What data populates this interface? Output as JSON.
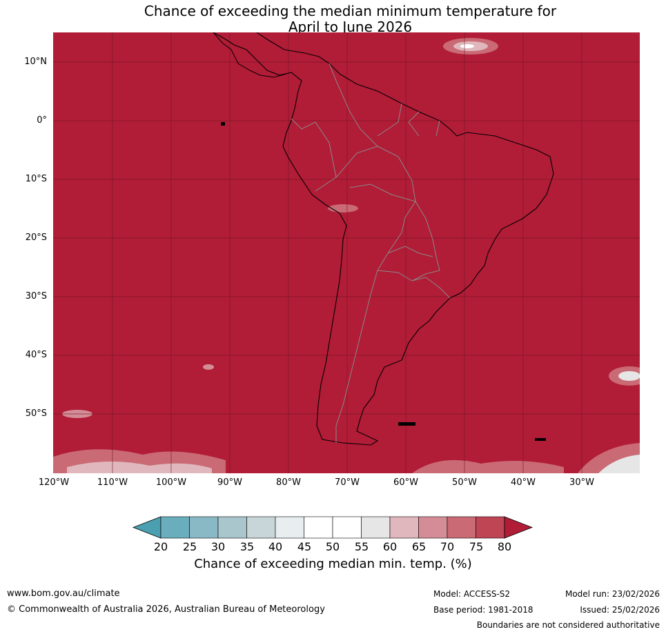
{
  "title": {
    "line1": "Chance of exceeding the median minimum temperature for",
    "line2": "April to June 2026"
  },
  "map": {
    "region": "South America",
    "background_color": "#b11c37",
    "lat_labels": [
      "10°N",
      "0°",
      "10°S",
      "20°S",
      "30°S",
      "40°S",
      "50°S"
    ],
    "lon_labels": [
      "120°W",
      "110°W",
      "100°W",
      "90°W",
      "80°W",
      "70°W",
      "60°W",
      "50°W",
      "40°W",
      "30°W"
    ]
  },
  "colorbar": {
    "ticks": [
      "20",
      "25",
      "30",
      "35",
      "40",
      "45",
      "50",
      "55",
      "60",
      "65",
      "70",
      "75",
      "80"
    ],
    "colors": [
      "#4a9fb0",
      "#6aaebe",
      "#8ab9c6",
      "#a9c6cd",
      "#c8d6da",
      "#e8eef0",
      "#ffffff",
      "#ffffff",
      "#e6e6e6",
      "#e0b7bd",
      "#d48d96",
      "#c96a74",
      "#bf4554",
      "#b11c37"
    ],
    "label": "Chance of exceeding median min. temp. (%)"
  },
  "footer": {
    "website": "www.bom.gov.au/climate",
    "copyright": "© Commonwealth of Australia 2026, Australian Bureau of Meteorology",
    "model": "Model: ACCESS-S2",
    "model_run": "Model run: 23/02/2026",
    "base_period": "Base period: 1981-2018",
    "issued": "Issued: 25/02/2026",
    "disclaimer": "Boundaries are not considered authoritative"
  }
}
